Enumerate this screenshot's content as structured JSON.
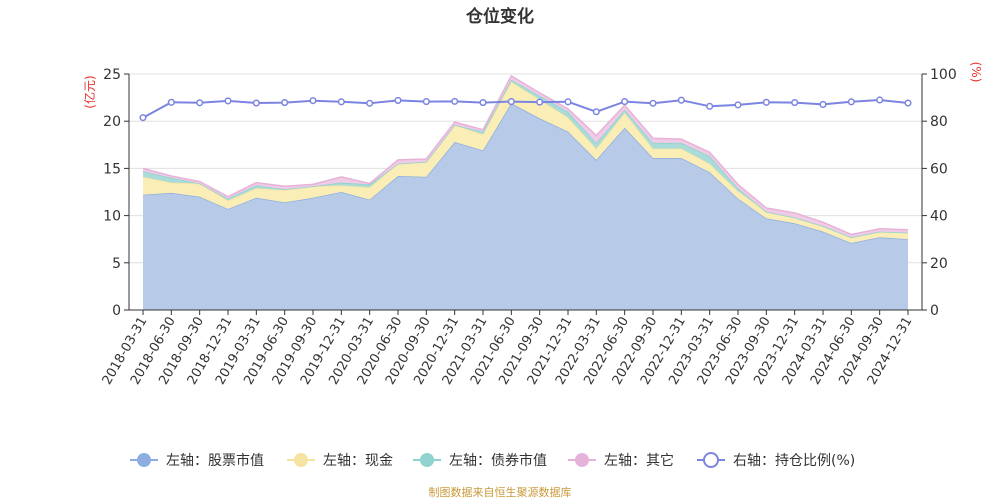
{
  "chart_data": {
    "type": "area",
    "title": "仓位变化",
    "left_axis_unit": "(亿元)",
    "right_axis_unit": "(%)",
    "left_ylim": [
      0,
      25
    ],
    "left_ticks": [
      0,
      5,
      10,
      15,
      20,
      25
    ],
    "right_ylim": [
      0,
      100
    ],
    "right_ticks": [
      0,
      20,
      40,
      60,
      80,
      100
    ],
    "categories": [
      "2018-03-31",
      "2018-06-30",
      "2018-09-30",
      "2018-12-31",
      "2019-03-31",
      "2019-06-30",
      "2019-09-30",
      "2019-12-31",
      "2020-03-31",
      "2020-06-30",
      "2020-09-30",
      "2020-12-31",
      "2021-03-31",
      "2021-06-30",
      "2021-09-30",
      "2021-12-31",
      "2022-03-31",
      "2022-06-30",
      "2022-09-30",
      "2022-12-31",
      "2023-03-31",
      "2023-06-30",
      "2023-09-30",
      "2023-12-31",
      "2024-03-31",
      "2024-06-30",
      "2024-09-30",
      "2024-12-31"
    ],
    "series": [
      {
        "name": "左轴：股票市值",
        "axis": "left",
        "color": "#b7cbe9",
        "legend_color": "#8eaee0",
        "values": [
          12.2,
          12.4,
          12.0,
          10.7,
          11.9,
          11.4,
          11.9,
          12.5,
          11.7,
          14.2,
          14.1,
          17.8,
          16.9,
          21.9,
          20.3,
          18.9,
          15.9,
          19.3,
          16.1,
          16.1,
          14.6,
          11.8,
          9.7,
          9.2,
          8.3,
          7.1,
          7.7,
          7.5
        ]
      },
      {
        "name": "左轴：现金",
        "axis": "left",
        "color": "#faedb6",
        "legend_color": "#f6e3a1",
        "values": [
          1.9,
          1.1,
          1.4,
          0.9,
          1.0,
          1.3,
          1.2,
          0.7,
          1.3,
          1.3,
          1.6,
          1.8,
          1.7,
          2.3,
          2.0,
          1.5,
          1.2,
          1.6,
          1.0,
          1.0,
          0.9,
          0.8,
          0.7,
          0.6,
          0.6,
          0.6,
          0.6,
          0.7
        ]
      },
      {
        "name": "左轴：债券市值",
        "axis": "left",
        "color": "#a9dcd8",
        "legend_color": "#8fd3cf",
        "values": [
          0.6,
          0.5,
          0.0,
          0.2,
          0.3,
          0.1,
          0.0,
          0.3,
          0.3,
          0.0,
          0.0,
          0.0,
          0.3,
          0.2,
          0.4,
          0.6,
          0.6,
          0.3,
          0.6,
          0.6,
          0.8,
          0.3,
          0.0,
          0.0,
          0.0,
          0.0,
          0.0,
          0.0
        ]
      },
      {
        "name": "左轴：其它",
        "axis": "left",
        "color": "#f0cbe6",
        "legend_color": "#e6b3d8",
        "values": [
          0.3,
          0.2,
          0.2,
          0.2,
          0.3,
          0.3,
          0.2,
          0.6,
          0.1,
          0.4,
          0.3,
          0.3,
          0.2,
          0.4,
          0.3,
          0.3,
          0.8,
          0.5,
          0.5,
          0.4,
          0.4,
          0.4,
          0.4,
          0.5,
          0.4,
          0.3,
          0.3,
          0.3
        ]
      },
      {
        "name": "右轴：持仓比例(%)",
        "axis": "right",
        "color": "#7b84e0",
        "values": [
          81.5,
          88.0,
          87.8,
          88.6,
          87.7,
          87.9,
          88.7,
          88.2,
          87.6,
          88.8,
          88.3,
          88.4,
          87.9,
          88.3,
          88.1,
          88.2,
          84.0,
          88.3,
          87.6,
          88.9,
          86.3,
          86.9,
          88.0,
          87.9,
          87.1,
          88.2,
          89.0,
          87.7
        ]
      }
    ]
  },
  "footer": "制图数据来自恒生聚源数据库"
}
